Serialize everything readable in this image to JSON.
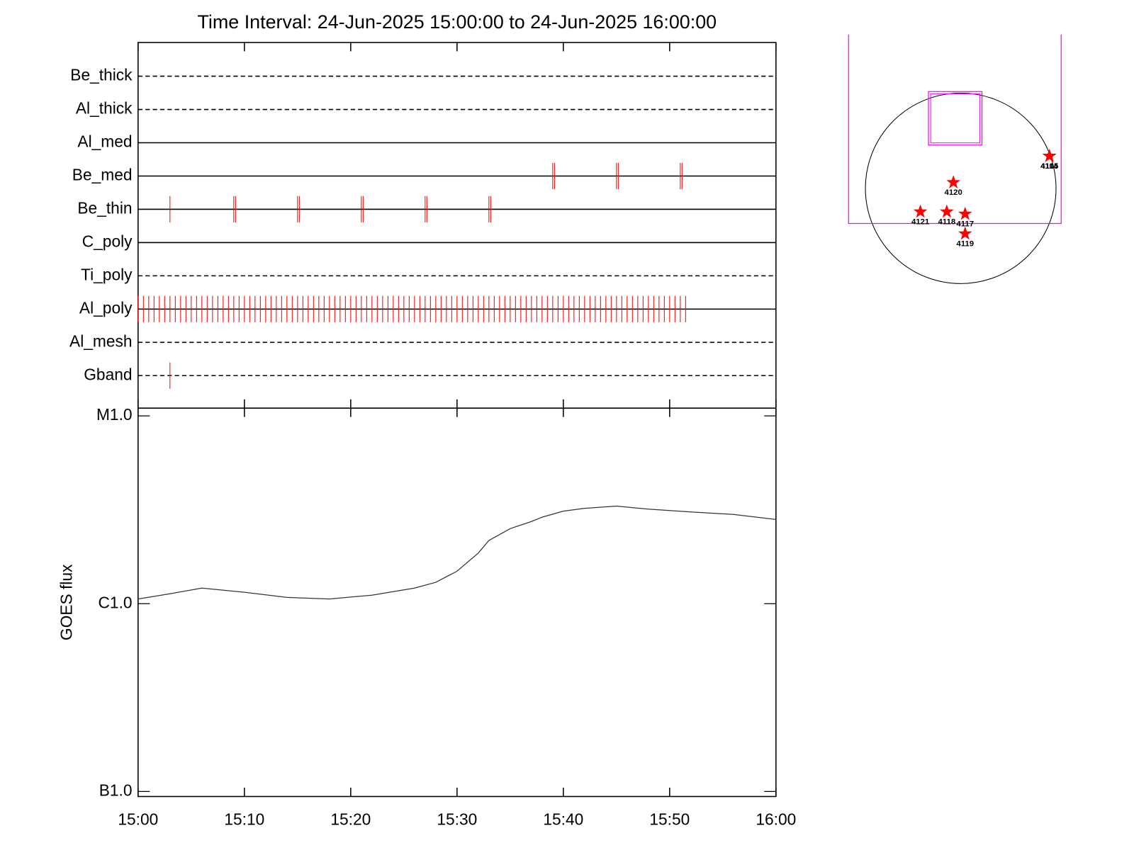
{
  "chart_data": [
    {
      "type": "timeline",
      "title": "Time Interval: 24-Jun-2025 15:00:00 to 24-Jun-2025 16:00:00",
      "categories": [
        "Be_thick",
        "Al_thick",
        "Al_med",
        "Be_med",
        "Be_thin",
        "C_poly",
        "Ti_poly",
        "Al_poly",
        "Al_mesh",
        "Gband"
      ],
      "line_styles": [
        "dashed",
        "dashed",
        "solid",
        "solid",
        "solid",
        "solid",
        "dashed",
        "solid",
        "dashed",
        "dashed"
      ],
      "color": "#ff0000",
      "xlim": [
        "15:00",
        "16:00"
      ],
      "events": [
        [],
        [],
        [],
        [
          "15:39:00",
          "15:39:10",
          "15:45:00",
          "15:45:10",
          "15:51:00",
          "15:51:10"
        ],
        [
          "15:03:00",
          "15:09:00",
          "15:09:10",
          "15:15:00",
          "15:15:10",
          "15:21:00",
          "15:21:10",
          "15:27:00",
          "15:27:10",
          "15:33:00",
          "15:33:10"
        ],
        [],
        [],
        [
          "15:00:00",
          "15:00:30",
          "15:01:00",
          "15:01:30",
          "15:02:00",
          "15:02:30",
          "15:03:00",
          "15:03:30",
          "15:04:00",
          "15:04:30",
          "15:05:00",
          "15:05:30",
          "15:06:00",
          "15:06:30",
          "15:07:00",
          "15:07:30",
          "15:08:00",
          "15:08:30",
          "15:09:00",
          "15:09:30",
          "15:10:00",
          "15:10:30",
          "15:11:00",
          "15:11:30",
          "15:12:00",
          "15:12:30",
          "15:13:00",
          "15:13:30",
          "15:14:00",
          "15:14:30",
          "15:15:00",
          "15:15:30",
          "15:16:00",
          "15:16:30",
          "15:17:00",
          "15:17:30",
          "15:18:00",
          "15:18:30",
          "15:19:00",
          "15:19:30",
          "15:20:00",
          "15:20:30",
          "15:21:00",
          "15:21:30",
          "15:22:00",
          "15:22:30",
          "15:23:00",
          "15:23:30",
          "15:24:00",
          "15:24:30",
          "15:25:00",
          "15:25:30",
          "15:26:00",
          "15:26:30",
          "15:27:00",
          "15:27:30",
          "15:28:00",
          "15:28:30",
          "15:29:00",
          "15:29:30",
          "15:30:00",
          "15:30:30",
          "15:31:00",
          "15:31:30",
          "15:32:00",
          "15:32:30",
          "15:33:00",
          "15:33:30",
          "15:34:00",
          "15:34:30",
          "15:35:00",
          "15:35:30",
          "15:36:00",
          "15:36:30",
          "15:37:00",
          "15:37:30",
          "15:38:00",
          "15:38:30",
          "15:39:00",
          "15:39:30",
          "15:40:00",
          "15:40:30",
          "15:41:00",
          "15:41:30",
          "15:42:00",
          "15:42:30",
          "15:43:00",
          "15:43:30",
          "15:44:00",
          "15:44:30",
          "15:45:00",
          "15:45:30",
          "15:46:00",
          "15:46:30",
          "15:47:00",
          "15:47:30",
          "15:48:00",
          "15:48:30",
          "15:49:00",
          "15:49:30",
          "15:50:00",
          "15:50:30",
          "15:51:00",
          "15:51:30"
        ],
        [],
        [
          "15:03:00"
        ]
      ]
    },
    {
      "type": "line",
      "ylabel": "GOES flux",
      "color": "#333333",
      "log_scale": true,
      "xlim": [
        "15:00",
        "16:00"
      ],
      "xticks": [
        "15:00",
        "15:10",
        "15:20",
        "15:30",
        "15:40",
        "15:50",
        "16:00"
      ],
      "ylim": [
        9.4e-08,
        1.1e-05
      ],
      "yticks": [
        {
          "value": 1e-05,
          "label": "M1.0"
        },
        {
          "value": 1e-06,
          "label": "C1.0"
        },
        {
          "value": 1e-07,
          "label": "B1.0"
        }
      ],
      "x": [
        "15:00",
        "15:03",
        "15:06",
        "15:10",
        "15:14",
        "15:18",
        "15:22",
        "15:26",
        "15:28",
        "15:30",
        "15:32",
        "15:33",
        "15:35",
        "15:37",
        "15:38",
        "15:40",
        "15:42",
        "15:45",
        "15:48",
        "15:52",
        "15:56",
        "16:00"
      ],
      "values": [
        1.06e-06,
        1.13e-06,
        1.21e-06,
        1.15e-06,
        1.08e-06,
        1.06e-06,
        1.11e-06,
        1.21e-06,
        1.3e-06,
        1.49e-06,
        1.86e-06,
        2.17e-06,
        2.51e-06,
        2.74e-06,
        2.89e-06,
        3.11e-06,
        3.22e-06,
        3.31e-06,
        3.19e-06,
        3.08e-06,
        2.99e-06,
        2.81e-06
      ]
    },
    {
      "type": "map",
      "color": "#ff0000",
      "regions": [
        "4105",
        "4114",
        "4120",
        "4121",
        "4118",
        "4117",
        "4119"
      ]
    }
  ]
}
